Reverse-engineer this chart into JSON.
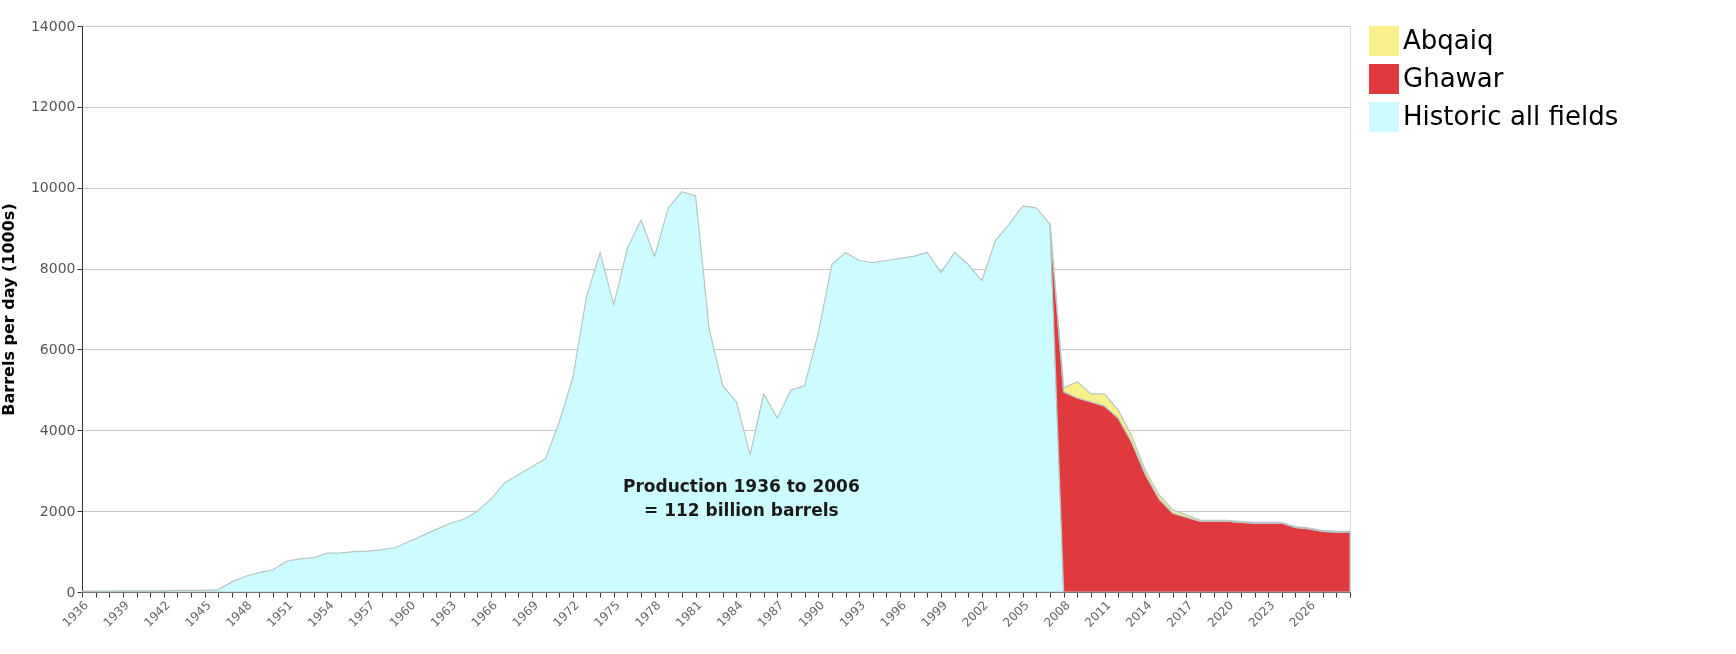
{
  "chart_data": {
    "type": "area",
    "stacked": true,
    "ylabel": "Barrels per day (1000s)",
    "x": [
      1936,
      1937,
      1938,
      1939,
      1940,
      1941,
      1942,
      1943,
      1944,
      1945,
      1946,
      1947,
      1948,
      1949,
      1950,
      1951,
      1952,
      1953,
      1954,
      1955,
      1956,
      1957,
      1958,
      1959,
      1960,
      1961,
      1962,
      1963,
      1964,
      1965,
      1966,
      1967,
      1968,
      1969,
      1970,
      1971,
      1972,
      1973,
      1974,
      1975,
      1976,
      1977,
      1978,
      1979,
      1980,
      1981,
      1982,
      1983,
      1984,
      1985,
      1986,
      1987,
      1988,
      1989,
      1990,
      1991,
      1992,
      1993,
      1994,
      1995,
      1996,
      1997,
      1998,
      1999,
      2000,
      2001,
      2002,
      2003,
      2004,
      2005,
      2006,
      2007,
      2008,
      2009,
      2010,
      2011,
      2012,
      2013,
      2014,
      2015,
      2016,
      2017,
      2018,
      2019,
      2020,
      2021,
      2022,
      2023,
      2024,
      2025,
      2026,
      2027,
      2028,
      2029
    ],
    "series": [
      {
        "name": "Historic all fields",
        "color": "#ccfcff",
        "values": [
          20,
          20,
          20,
          30,
          30,
          30,
          30,
          40,
          40,
          40,
          60,
          250,
          390,
          480,
          550,
          760,
          820,
          850,
          960,
          970,
          1000,
          1010,
          1050,
          1100,
          1250,
          1400,
          1550,
          1700,
          1800,
          2000,
          2300,
          2700,
          2900,
          3100,
          3300,
          4200,
          5300,
          7300,
          8400,
          7100,
          8500,
          9200,
          8300,
          9500,
          9900,
          9800,
          6500,
          5100,
          4700,
          3400,
          4900,
          4300,
          5000,
          5100,
          6400,
          8100,
          8400,
          8200,
          8150,
          8200,
          8250,
          8300,
          8400,
          7900,
          8400,
          8100,
          7700,
          8700,
          9100,
          9550,
          9500,
          9100,
          0,
          null,
          null,
          null,
          null,
          null,
          null,
          null,
          null,
          null,
          null,
          null,
          null,
          null,
          null,
          null,
          null,
          null,
          null,
          null,
          null,
          null
        ]
      },
      {
        "name": "Ghawar",
        "color": "#e03a3e",
        "values": [
          null,
          null,
          null,
          null,
          null,
          null,
          null,
          null,
          null,
          null,
          null,
          null,
          null,
          null,
          null,
          null,
          null,
          null,
          null,
          null,
          null,
          null,
          null,
          null,
          null,
          null,
          null,
          null,
          null,
          null,
          null,
          null,
          null,
          null,
          null,
          null,
          null,
          null,
          null,
          null,
          null,
          null,
          null,
          null,
          null,
          null,
          null,
          null,
          null,
          null,
          null,
          null,
          null,
          null,
          null,
          null,
          null,
          null,
          null,
          null,
          null,
          null,
          null,
          null,
          null,
          null,
          null,
          null,
          null,
          null,
          null,
          0,
          4950,
          4800,
          4700,
          4600,
          4300,
          3700,
          2900,
          2300,
          1950,
          1850,
          1750,
          1750,
          1750,
          1720,
          1700,
          1700,
          1700,
          1600,
          1560,
          1500,
          1480,
          1480
        ]
      },
      {
        "name": "Abqaiq",
        "color": "#f8f08a",
        "values": [
          null,
          null,
          null,
          null,
          null,
          null,
          null,
          null,
          null,
          null,
          null,
          null,
          null,
          null,
          null,
          null,
          null,
          null,
          null,
          null,
          null,
          null,
          null,
          null,
          null,
          null,
          null,
          null,
          null,
          null,
          null,
          null,
          null,
          null,
          null,
          null,
          null,
          null,
          null,
          null,
          null,
          null,
          null,
          null,
          null,
          null,
          null,
          null,
          null,
          null,
          null,
          null,
          null,
          null,
          null,
          null,
          null,
          null,
          null,
          null,
          null,
          null,
          null,
          null,
          null,
          null,
          null,
          null,
          null,
          null,
          null,
          0,
          100,
          400,
          200,
          300,
          200,
          150,
          100,
          100,
          80,
          60,
          30,
          20,
          20,
          20,
          20,
          20,
          20,
          20,
          20,
          20,
          20,
          20
        ]
      }
    ],
    "xlim": [
      1936,
      2029
    ],
    "ylim": [
      0,
      14000
    ],
    "yticks": [
      0,
      2000,
      4000,
      6000,
      8000,
      10000,
      12000,
      14000
    ],
    "xticks": [
      1936,
      {
        "value": 1937,
        "label": null
      },
      {
        "value": 1938,
        "label": null
      },
      1939,
      {
        "value": 1940,
        "label": null
      },
      {
        "value": 1941,
        "label": null
      },
      1942,
      {
        "value": 1943,
        "label": null
      },
      {
        "value": 1944,
        "label": null
      },
      1945,
      {
        "value": 1946,
        "label": null
      },
      {
        "value": 1947,
        "label": null
      },
      1948,
      {
        "value": 1949,
        "label": null
      },
      {
        "value": 1950,
        "label": null
      },
      1951,
      {
        "value": 1952,
        "label": null
      },
      {
        "value": 1953,
        "label": null
      },
      1954,
      {
        "value": 1955,
        "label": null
      },
      {
        "value": 1956,
        "label": null
      },
      1957,
      {
        "value": 1958,
        "label": null
      },
      {
        "value": 1959,
        "label": null
      },
      1960,
      {
        "value": 1961,
        "label": null
      },
      {
        "value": 1962,
        "label": null
      },
      1963,
      {
        "value": 1964,
        "label": null
      },
      {
        "value": 1965,
        "label": null
      },
      1966,
      {
        "value": 1967,
        "label": null
      },
      {
        "value": 1968,
        "label": null
      },
      1969,
      {
        "value": 1970,
        "label": null
      },
      {
        "value": 1971,
        "label": null
      },
      1972,
      {
        "value": 1973,
        "label": null
      },
      {
        "value": 1974,
        "label": null
      },
      1975,
      {
        "value": 1976,
        "label": null
      },
      {
        "value": 1977,
        "label": null
      },
      1978,
      {
        "value": 1979,
        "label": null
      },
      {
        "value": 1980,
        "label": null
      },
      1981,
      {
        "value": 1982,
        "label": null
      },
      {
        "value": 1983,
        "label": null
      },
      1984,
      {
        "value": 1985,
        "label": null
      },
      {
        "value": 1986,
        "label": null
      },
      1987,
      {
        "value": 1988,
        "label": null
      },
      {
        "value": 1989,
        "label": null
      },
      1990,
      {
        "value": 1991,
        "label": null
      },
      {
        "value": 1992,
        "label": null
      },
      1993,
      {
        "value": 1994,
        "label": null
      },
      {
        "value": 1995,
        "label": null
      },
      1996,
      {
        "value": 1997,
        "label": null
      },
      {
        "value": 1998,
        "label": null
      },
      1999,
      {
        "value": 2000,
        "label": null
      },
      {
        "value": 2001,
        "label": null
      },
      2002,
      {
        "value": 2003,
        "label": null
      },
      {
        "value": 2004,
        "label": null
      },
      2005,
      {
        "value": 2006,
        "label": null
      },
      {
        "value": 2007,
        "label": null
      },
      2008,
      {
        "value": 2009,
        "label": null
      },
      {
        "value": 2010,
        "label": null
      },
      2011,
      {
        "value": 2012,
        "label": null
      },
      {
        "value": 2013,
        "label": null
      },
      2014,
      {
        "value": 2015,
        "label": null
      },
      {
        "value": 2016,
        "label": null
      },
      2017,
      {
        "value": 2018,
        "label": null
      },
      {
        "value": 2019,
        "label": null
      },
      2020,
      {
        "value": 2021,
        "label": null
      },
      {
        "value": 2022,
        "label": null
      },
      2023,
      {
        "value": 2024,
        "label": null
      },
      {
        "value": 2025,
        "label": null
      },
      2026,
      {
        "value": 2027,
        "label": null
      },
      {
        "value": 2028,
        "label": null
      },
      {
        "value": 2029,
        "label": null
      }
    ],
    "grid": "y",
    "legend": "right",
    "annotations": [
      "Production 1936 to 2006\n= 112 billion barrels"
    ]
  }
}
